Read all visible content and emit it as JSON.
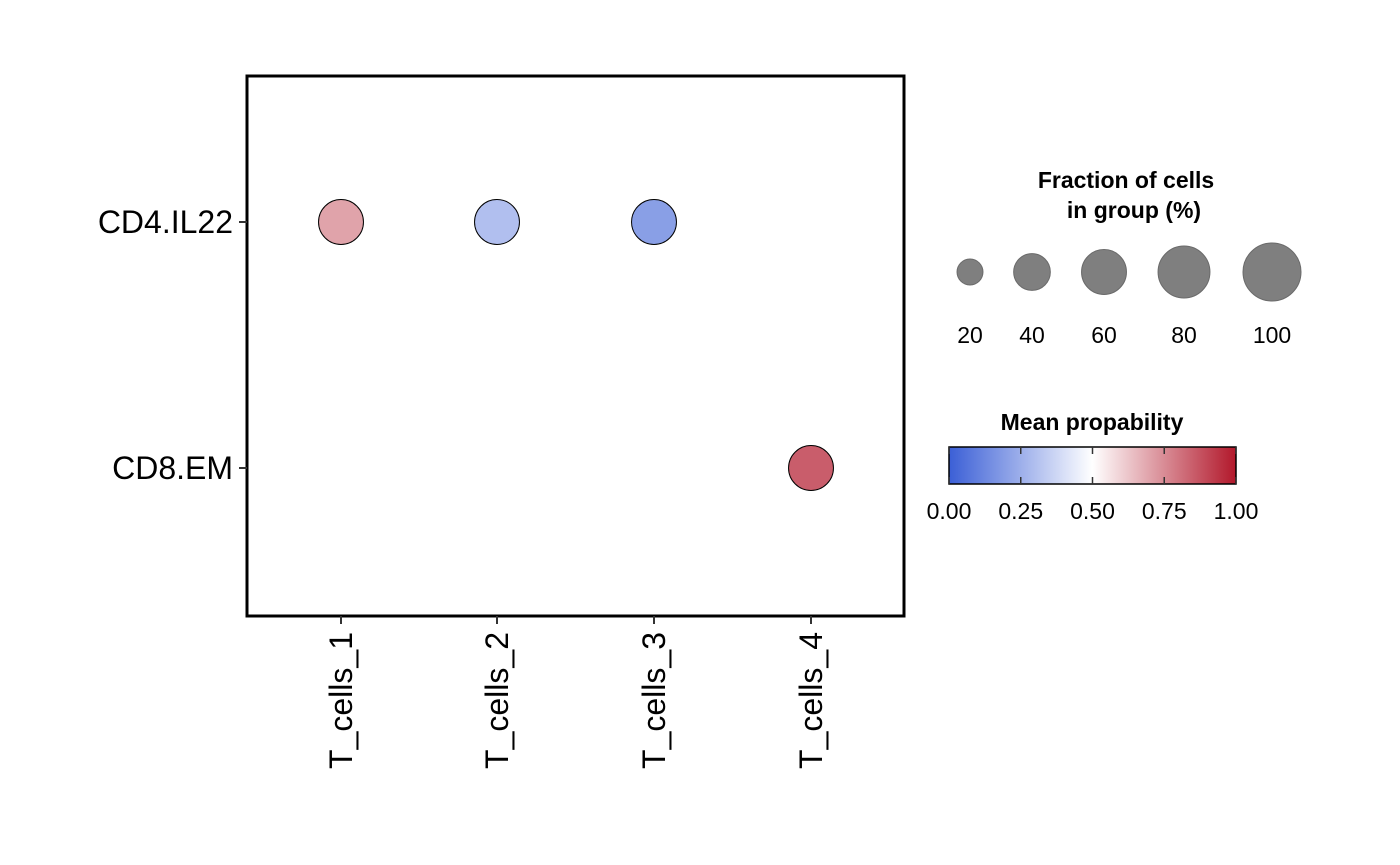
{
  "chart_data": {
    "type": "dotplot",
    "categories_x": [
      "T_cells_1",
      "T_cells_2",
      "T_cells_3",
      "T_cells_4"
    ],
    "categories_y": [
      "CD4.IL22",
      "CD8.EM"
    ],
    "points": [
      {
        "x": "T_cells_1",
        "y": "CD4.IL22",
        "fraction": 60,
        "mean": 0.7
      },
      {
        "x": "T_cells_2",
        "y": "CD4.IL22",
        "fraction": 60,
        "mean": 0.3
      },
      {
        "x": "T_cells_3",
        "y": "CD4.IL22",
        "fraction": 60,
        "mean": 0.2
      },
      {
        "x": "T_cells_4",
        "y": "CD8.EM",
        "fraction": 60,
        "mean": 0.85
      }
    ],
    "size_legend": {
      "title_line1": "Fraction of cells",
      "title_line2": "in group (%)",
      "values": [
        20,
        40,
        60,
        80,
        100
      ],
      "labels": [
        "20",
        "40",
        "60",
        "80",
        "100"
      ]
    },
    "color_legend": {
      "title": "Mean propability",
      "range": [
        0,
        1
      ],
      "ticks": [
        0,
        0.25,
        0.5,
        0.75,
        1.0
      ],
      "tick_labels": [
        "0.00",
        "0.25",
        "0.50",
        "0.75",
        "1.00"
      ],
      "low_color": "#3B5FD6",
      "mid_color": "#FFFFFF",
      "high_color": "#B2182B"
    },
    "grid": false
  }
}
